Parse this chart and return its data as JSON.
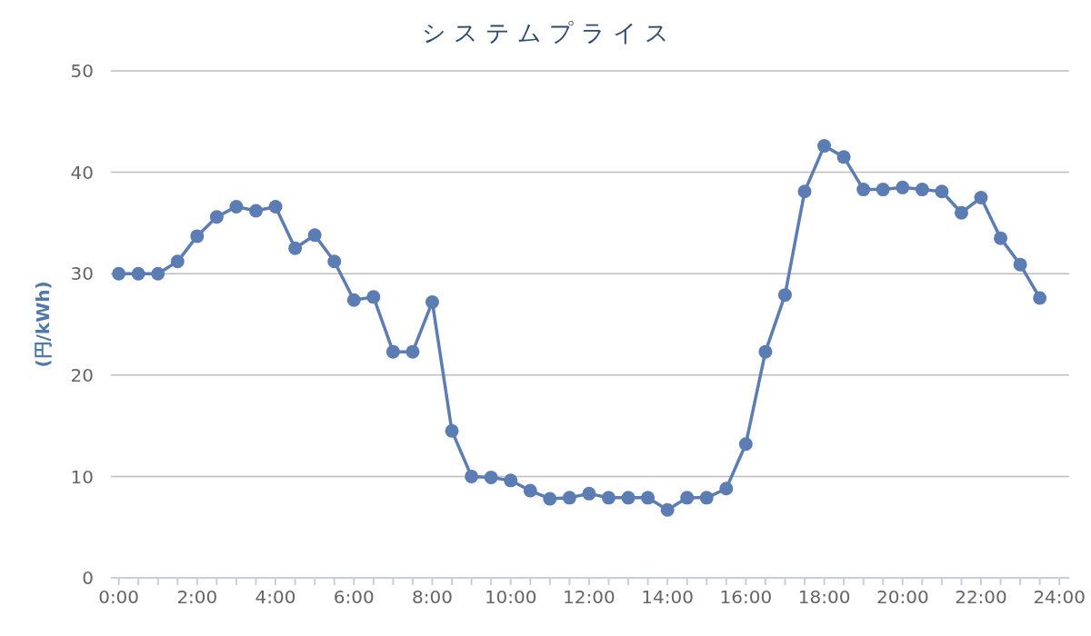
{
  "chart_data": {
    "type": "line",
    "title": "システムプライス",
    "ylabel": "(円/kWh)",
    "x": [
      0,
      0.5,
      1,
      1.5,
      2,
      2.5,
      3,
      3.5,
      4,
      4.5,
      5,
      5.5,
      6,
      6.5,
      7,
      7.5,
      8,
      8.5,
      9,
      9.5,
      10,
      10.5,
      11,
      11.5,
      12,
      12.5,
      13,
      13.5,
      14,
      14.5,
      15,
      15.5,
      16,
      16.5,
      17,
      17.5,
      18,
      18.5,
      19,
      19.5,
      20,
      20.5,
      21,
      21.5,
      22,
      22.5,
      23,
      23.5
    ],
    "series": [
      {
        "color": "#5b7db3",
        "values": [
          30.0,
          30.0,
          30.0,
          31.2,
          33.7,
          35.6,
          36.6,
          36.2,
          36.6,
          32.5,
          33.8,
          31.2,
          27.4,
          27.7,
          22.3,
          22.3,
          27.2,
          14.5,
          10.0,
          9.9,
          9.6,
          8.6,
          7.8,
          7.9,
          8.3,
          7.9,
          7.9,
          7.9,
          6.7,
          7.9,
          7.9,
          8.8,
          13.2,
          22.3,
          27.9,
          38.1,
          42.6,
          41.5,
          38.3,
          38.3,
          38.5,
          38.3,
          38.1,
          36.0,
          37.5,
          33.5,
          30.9,
          27.6
        ]
      }
    ],
    "xlim": [
      -0.2,
      24.25
    ],
    "xticks": [
      {
        "value": 0,
        "label": "0:00"
      },
      {
        "value": 0.5,
        "label": null
      },
      {
        "value": 1,
        "label": null
      },
      {
        "value": 1.5,
        "label": null
      },
      {
        "value": 2,
        "label": "2:00"
      },
      {
        "value": 2.5,
        "label": null
      },
      {
        "value": 3,
        "label": null
      },
      {
        "value": 3.5,
        "label": null
      },
      {
        "value": 4,
        "label": "4:00"
      },
      {
        "value": 4.5,
        "label": null
      },
      {
        "value": 5,
        "label": null
      },
      {
        "value": 5.5,
        "label": null
      },
      {
        "value": 6,
        "label": "6:00"
      },
      {
        "value": 6.5,
        "label": null
      },
      {
        "value": 7,
        "label": null
      },
      {
        "value": 7.5,
        "label": null
      },
      {
        "value": 8,
        "label": "8:00"
      },
      {
        "value": 8.5,
        "label": null
      },
      {
        "value": 9,
        "label": null
      },
      {
        "value": 9.5,
        "label": null
      },
      {
        "value": 10,
        "label": "10:00"
      },
      {
        "value": 10.5,
        "label": null
      },
      {
        "value": 11,
        "label": null
      },
      {
        "value": 11.5,
        "label": null
      },
      {
        "value": 12,
        "label": "12:00"
      },
      {
        "value": 12.5,
        "label": null
      },
      {
        "value": 13,
        "label": null
      },
      {
        "value": 13.5,
        "label": null
      },
      {
        "value": 14,
        "label": "14:00"
      },
      {
        "value": 14.5,
        "label": null
      },
      {
        "value": 15,
        "label": null
      },
      {
        "value": 15.5,
        "label": null
      },
      {
        "value": 16,
        "label": "16:00"
      },
      {
        "value": 16.5,
        "label": null
      },
      {
        "value": 17,
        "label": null
      },
      {
        "value": 17.5,
        "label": null
      },
      {
        "value": 18,
        "label": "18:00"
      },
      {
        "value": 18.5,
        "label": null
      },
      {
        "value": 19,
        "label": null
      },
      {
        "value": 19.5,
        "label": null
      },
      {
        "value": 20,
        "label": "20:00"
      },
      {
        "value": 20.5,
        "label": null
      },
      {
        "value": 21,
        "label": null
      },
      {
        "value": 21.5,
        "label": null
      },
      {
        "value": 22,
        "label": "22:00"
      },
      {
        "value": 22.5,
        "label": null
      },
      {
        "value": 23,
        "label": null
      },
      {
        "value": 23.5,
        "label": null
      },
      {
        "value": 24,
        "label": "24:00"
      }
    ],
    "ylim": [
      0,
      50
    ],
    "yticks": [
      0,
      10,
      20,
      30,
      40,
      50
    ],
    "grid": "y",
    "marker": "circle",
    "line_style": "solid"
  }
}
